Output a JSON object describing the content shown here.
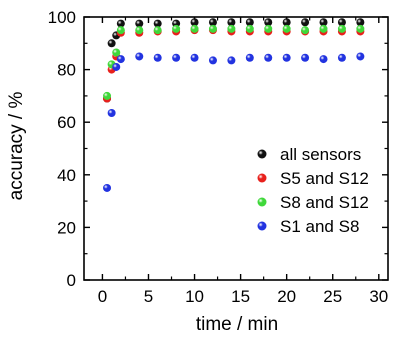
{
  "chart_data": {
    "type": "scatter",
    "xlabel": "time / min",
    "ylabel": "accuracy / %",
    "xlim": [
      -2,
      31
    ],
    "ylim": [
      0,
      100
    ],
    "xticks": [
      0,
      5,
      10,
      15,
      20,
      25,
      30
    ],
    "yticks": [
      0,
      20,
      40,
      60,
      80,
      100
    ],
    "grid": false,
    "legend_position": "bottom-right",
    "series": [
      {
        "name": "all sensors",
        "color": "#111111",
        "points": [
          [
            0.5,
            69
          ],
          [
            1.0,
            90
          ],
          [
            1.5,
            93
          ],
          [
            2.0,
            97.5
          ],
          [
            4,
            97.5
          ],
          [
            6,
            97.5
          ],
          [
            8,
            97.5
          ],
          [
            10,
            98
          ],
          [
            12,
            98
          ],
          [
            14,
            98
          ],
          [
            16,
            98
          ],
          [
            18,
            98
          ],
          [
            20,
            98
          ],
          [
            22,
            98
          ],
          [
            24,
            98
          ],
          [
            26,
            98
          ],
          [
            28,
            98
          ]
        ]
      },
      {
        "name": "S5 and S12",
        "color": "#e8201c",
        "points": [
          [
            0.5,
            69
          ],
          [
            1.0,
            80
          ],
          [
            1.5,
            85
          ],
          [
            2.0,
            94
          ],
          [
            4,
            94
          ],
          [
            6,
            94.5
          ],
          [
            8,
            94.5
          ],
          [
            10,
            95
          ],
          [
            12,
            95
          ],
          [
            14,
            94.5
          ],
          [
            16,
            94.5
          ],
          [
            18,
            94.5
          ],
          [
            20,
            94.5
          ],
          [
            22,
            94.5
          ],
          [
            24,
            94.5
          ],
          [
            26,
            94.5
          ],
          [
            28,
            94.5
          ]
        ]
      },
      {
        "name": "S8 and S12",
        "color": "#3fd83a",
        "points": [
          [
            0.5,
            70
          ],
          [
            1.0,
            82
          ],
          [
            1.5,
            86.5
          ],
          [
            2.0,
            95
          ],
          [
            4,
            95
          ],
          [
            6,
            95
          ],
          [
            8,
            95.5
          ],
          [
            10,
            95.5
          ],
          [
            12,
            95.5
          ],
          [
            14,
            95.5
          ],
          [
            16,
            95.5
          ],
          [
            18,
            95.5
          ],
          [
            20,
            95.5
          ],
          [
            22,
            95
          ],
          [
            24,
            95.5
          ],
          [
            26,
            95.5
          ],
          [
            28,
            95.5
          ]
        ]
      },
      {
        "name": "S1 and S8",
        "color": "#2233e0",
        "points": [
          [
            0.5,
            35
          ],
          [
            1.0,
            63.5
          ],
          [
            1.5,
            81
          ],
          [
            2.0,
            84
          ],
          [
            4,
            85
          ],
          [
            6,
            84.5
          ],
          [
            8,
            84.5
          ],
          [
            10,
            84.5
          ],
          [
            12,
            83.5
          ],
          [
            14,
            83.5
          ],
          [
            16,
            84.5
          ],
          [
            18,
            84.5
          ],
          [
            20,
            84.5
          ],
          [
            22,
            84.5
          ],
          [
            24,
            84
          ],
          [
            26,
            84.5
          ],
          [
            28,
            85
          ]
        ]
      }
    ]
  }
}
